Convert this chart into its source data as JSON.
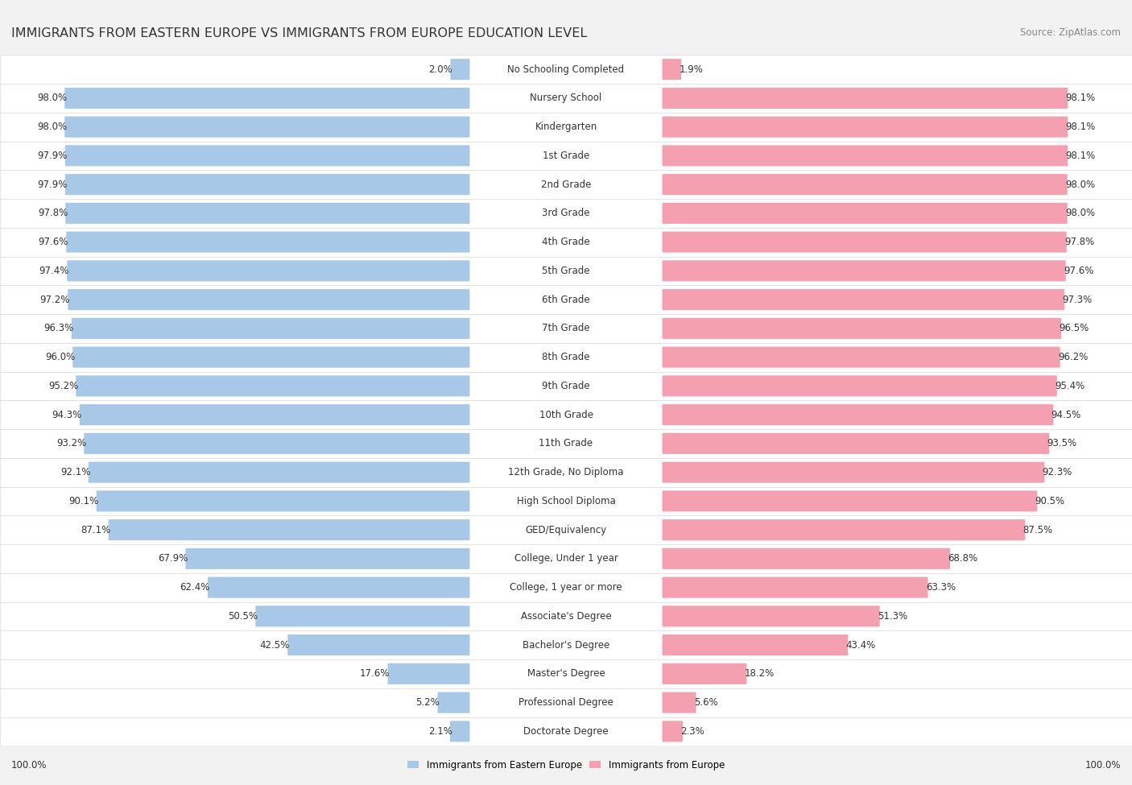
{
  "title": "IMMIGRANTS FROM EASTERN EUROPE VS IMMIGRANTS FROM EUROPE EDUCATION LEVEL",
  "source": "Source: ZipAtlas.com",
  "categories": [
    "No Schooling Completed",
    "Nursery School",
    "Kindergarten",
    "1st Grade",
    "2nd Grade",
    "3rd Grade",
    "4th Grade",
    "5th Grade",
    "6th Grade",
    "7th Grade",
    "8th Grade",
    "9th Grade",
    "10th Grade",
    "11th Grade",
    "12th Grade, No Diploma",
    "High School Diploma",
    "GED/Equivalency",
    "College, Under 1 year",
    "College, 1 year or more",
    "Associate's Degree",
    "Bachelor's Degree",
    "Master's Degree",
    "Professional Degree",
    "Doctorate Degree"
  ],
  "eastern_europe": [
    2.0,
    98.0,
    98.0,
    97.9,
    97.9,
    97.8,
    97.6,
    97.4,
    97.2,
    96.3,
    96.0,
    95.2,
    94.3,
    93.2,
    92.1,
    90.1,
    87.1,
    67.9,
    62.4,
    50.5,
    42.5,
    17.6,
    5.2,
    2.1
  ],
  "europe": [
    1.9,
    98.1,
    98.1,
    98.1,
    98.0,
    98.0,
    97.8,
    97.6,
    97.3,
    96.5,
    96.2,
    95.4,
    94.5,
    93.5,
    92.3,
    90.5,
    87.5,
    68.8,
    63.3,
    51.3,
    43.4,
    18.2,
    5.6,
    2.3
  ],
  "blue_color": "#a8c8e8",
  "pink_color": "#f4a0b0",
  "bg_color": "#f2f2f2",
  "row_bg_color": "#ffffff",
  "row_alt_bg": "#f8f8f8",
  "title_fontsize": 11.5,
  "label_fontsize": 8.5,
  "value_fontsize": 8.5,
  "legend_label_eastern": "Immigrants from Eastern Europe",
  "legend_label_europe": "Immigrants from Europe",
  "bottom_left_label": "100.0%",
  "bottom_right_label": "100.0%"
}
